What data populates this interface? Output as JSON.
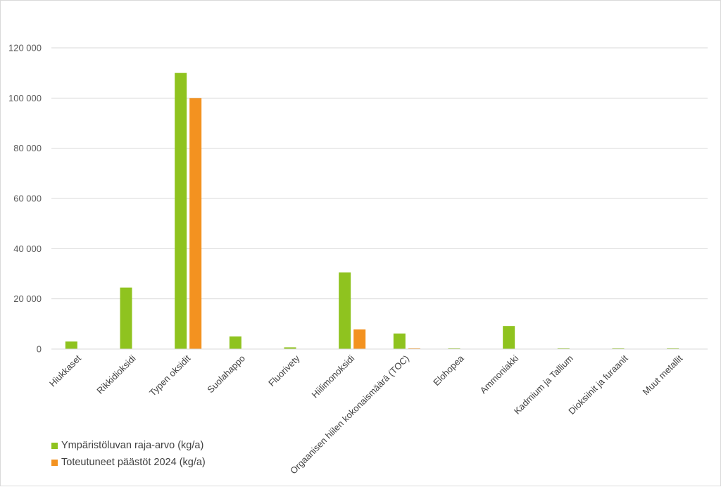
{
  "chart_data": {
    "type": "bar",
    "title": "",
    "xlabel": "",
    "ylabel": "",
    "ylim": [
      0,
      120000
    ],
    "yticks": [
      0,
      20000,
      40000,
      60000,
      80000,
      100000,
      120000
    ],
    "ytick_labels": [
      "0",
      "20 000",
      "40 000",
      "60 000",
      "80 000",
      "100 000",
      "120 000"
    ],
    "grid": true,
    "legend_position": "bottom-left",
    "categories": [
      "Hiukkaset",
      "Rikkidioksidi",
      "Typen oksidit",
      "Suolahappo",
      "Fluorivety",
      "Hiilimonoksidi",
      "Orgaanisen hiilen kokonaismäärä (TOC)",
      "Elohopea",
      "Ammoniakki",
      "Kadmium ja Tallium",
      "Dioksiinit ja furaanit",
      "Muut metallit"
    ],
    "series": [
      {
        "name": "Ympäristöluvan raja-arvo (kg/a)",
        "color": "#8fc31f",
        "values": [
          3000,
          24500,
          110000,
          5000,
          700,
          30500,
          6200,
          50,
          9200,
          50,
          1,
          200
        ]
      },
      {
        "name": "Toteutuneet päästöt 2024 (kg/a)",
        "color": "#f39220",
        "values": [
          0,
          0,
          100000,
          0,
          0,
          7800,
          200,
          0,
          0,
          0,
          0,
          0
        ]
      }
    ]
  }
}
